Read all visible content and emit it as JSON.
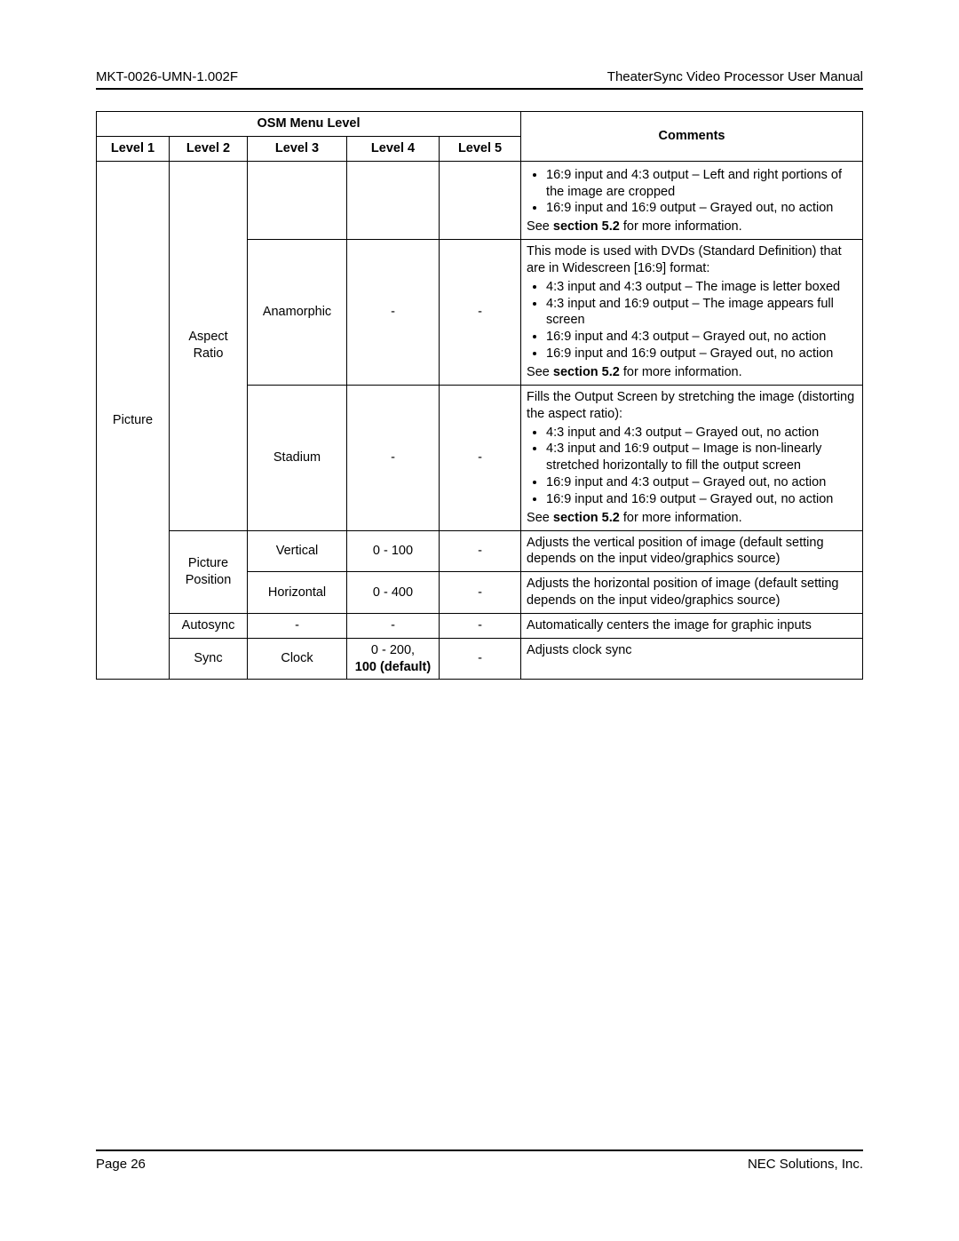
{
  "header": {
    "doc_id": "MKT-0026-UMN-1.002F",
    "doc_title": "TheaterSync Video Processor User Manual"
  },
  "table": {
    "super_headers": {
      "left": "OSM Menu Level",
      "right": "Comments"
    },
    "col_headers": [
      "Level 1",
      "Level 2",
      "Level 3",
      "Level 4",
      "Level 5"
    ],
    "rows": {
      "r0": {
        "comments_bullets": [
          "16:9 input and 4:3 output – Left and right portions of the image are cropped",
          "16:9 input and 16:9 output – Grayed out, no action"
        ],
        "comments_tail_pre": "See ",
        "comments_tail_bold": "section 5.2",
        "comments_tail_post": " for more information."
      },
      "r1": {
        "level1": "Picture",
        "level2": "Aspect Ratio",
        "level3": "Anamorphic",
        "level4": "-",
        "level5": "-",
        "comments_intro": "This mode is used with DVDs (Standard Definition) that are in Widescreen [16:9] format:",
        "comments_bullets": [
          "4:3 input and 4:3 output – The image is letter boxed",
          "4:3 input and 16:9 output – The image appears full screen",
          "16:9 input and 4:3 output – Grayed out, no action",
          "16:9 input and 16:9 output – Grayed out, no action"
        ],
        "comments_tail_pre": "See ",
        "comments_tail_bold": "section 5.2",
        "comments_tail_post": " for more information."
      },
      "r2": {
        "level3": "Stadium",
        "level4": "-",
        "level5": "-",
        "comments_intro": "Fills the Output Screen by stretching the image (distorting the aspect ratio):",
        "comments_bullets": [
          "4:3 input and 4:3 output – Grayed out, no action",
          "4:3 input and 16:9 output – Image is non-linearly stretched horizontally to fill the output screen",
          "16:9 input and 4:3 output – Grayed out, no action",
          "16:9 input and 16:9 output – Grayed out, no action"
        ],
        "comments_tail_pre": "See ",
        "comments_tail_bold": "section 5.2",
        "comments_tail_post": " for more information."
      },
      "r3": {
        "level2": "Picture Position",
        "level3": "Vertical",
        "level4": "0 - 100",
        "level5": "-",
        "comments": "Adjusts the vertical position of image (default setting depends on the input video/graphics source)"
      },
      "r4": {
        "level3": "Horizontal",
        "level4": "0 - 400",
        "level5": "-",
        "comments": "Adjusts the horizontal position of image (default setting depends on the input video/graphics source)"
      },
      "r5": {
        "level2": "Autosync",
        "level3": "-",
        "level4": "-",
        "level5": "-",
        "comments": "Automatically centers the image for graphic inputs"
      },
      "r6": {
        "level2": "Sync",
        "level3": "Clock",
        "level4_line1": "0 - 200,",
        "level4_line2": "100 (default)",
        "level5": "-",
        "comments": "Adjusts clock sync"
      }
    }
  },
  "footer": {
    "page": "Page 26",
    "company": "NEC Solutions, Inc."
  }
}
